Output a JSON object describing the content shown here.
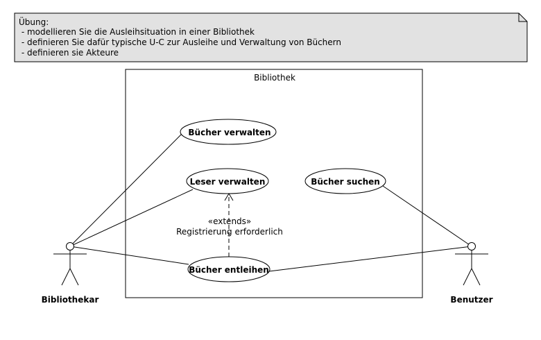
{
  "note": {
    "lines": [
      "Übung:",
      " - modellieren Sie die Ausleihsituation in einer Bibliothek",
      " - definieren Sie dafür typische U-C zur Ausleihe und Verwaltung von Büchern",
      " - definieren sie Akteure"
    ]
  },
  "system": {
    "title": "Bibliothek"
  },
  "use_cases": {
    "buecher_verwalten": "Bücher verwalten",
    "leser_verwalten": "Leser verwalten",
    "buecher_suchen": "Bücher suchen",
    "buecher_entleihen": "Bücher entleihen"
  },
  "extends": {
    "stereotype": "«extends»",
    "condition": "Registrierung erforderlich"
  },
  "actors": {
    "bibliothekar": "Bibliothekar",
    "benutzer": "Benutzer"
  },
  "colors": {
    "note_fill": "#e2e2e2",
    "line": "#000000",
    "background": "#ffffff"
  }
}
